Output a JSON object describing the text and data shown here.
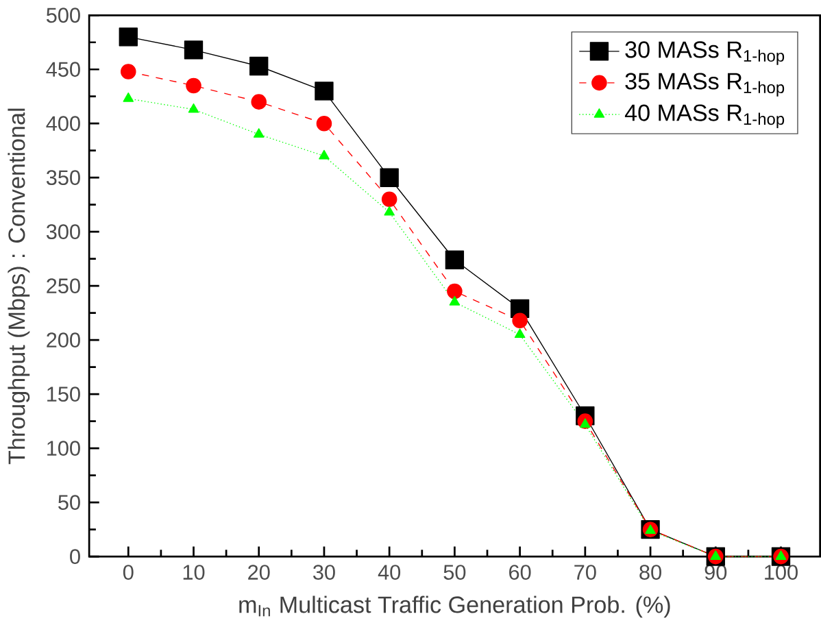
{
  "chart_data": {
    "type": "line",
    "xlabel": "m$_{In}$ Multicast Traffic Generation Prob. (%)",
    "ylabel": "Throughput (Mbps) : Conventional",
    "x": [
      0,
      10,
      20,
      30,
      40,
      50,
      60,
      70,
      80,
      90,
      100
    ],
    "series": [
      {
        "name": "30 MASs R$_{1-hop}$",
        "color": "#000000",
        "marker": "square",
        "line_style": "solid",
        "values": [
          480,
          468,
          453,
          430,
          350,
          274,
          229,
          130,
          25,
          0,
          0
        ]
      },
      {
        "name": "35 MASs R$_{1-hop}$",
        "color": "#ff0000",
        "marker": "circle",
        "line_style": "dashed",
        "values": [
          448,
          435,
          420,
          400,
          330,
          245,
          218,
          125,
          25,
          0,
          0
        ]
      },
      {
        "name": "40 MASs R$_{1-hop}$",
        "color": "#00ff00",
        "marker": "triangle",
        "line_style": "dotted",
        "values": [
          423,
          413,
          390,
          370,
          318,
          235,
          205,
          122,
          24,
          0,
          0
        ]
      }
    ],
    "xlim": [
      -6,
      106
    ],
    "ylim": [
      0,
      500
    ],
    "xticks": [
      0,
      10,
      20,
      30,
      40,
      50,
      60,
      70,
      80,
      90,
      100
    ],
    "yticks": [
      0,
      50,
      100,
      150,
      200,
      250,
      300,
      350,
      400,
      450,
      500
    ],
    "grid": false,
    "legend": "top right"
  }
}
